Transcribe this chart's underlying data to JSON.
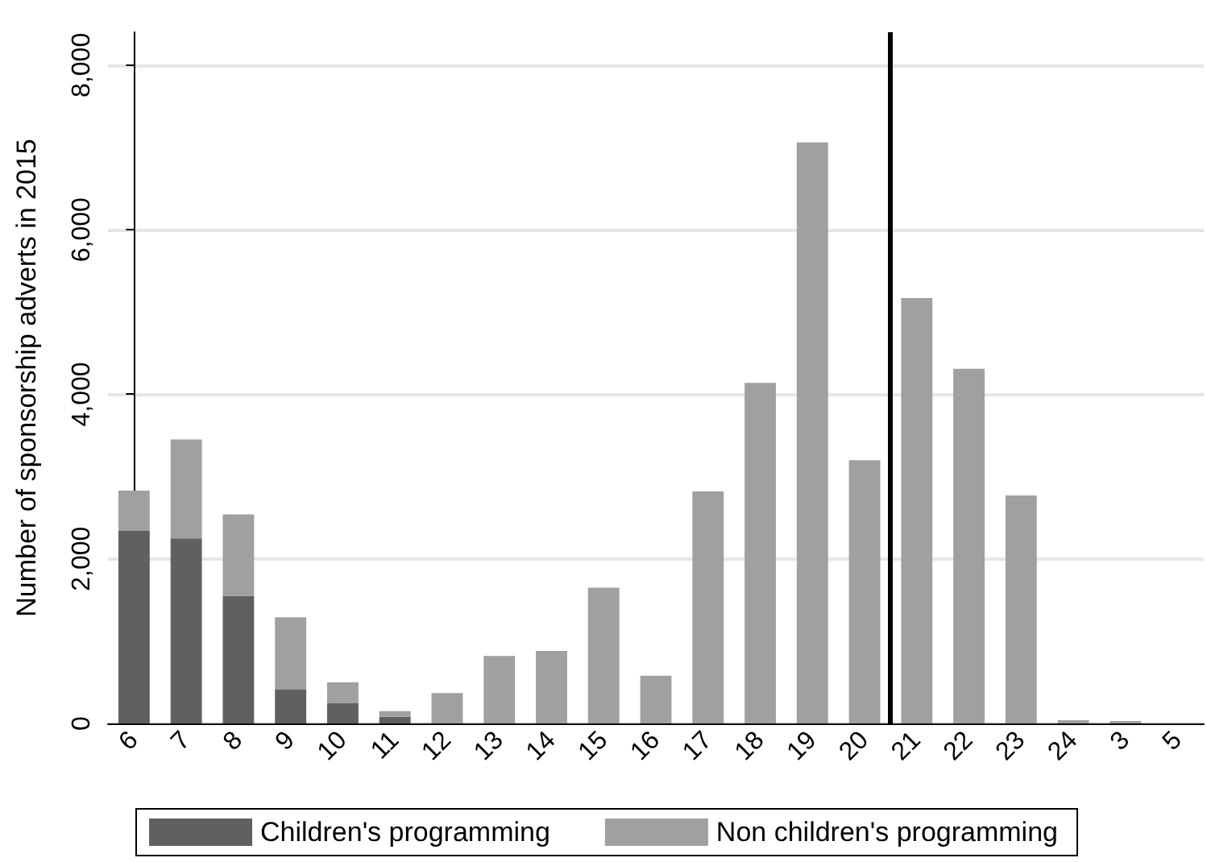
{
  "chart_data": {
    "type": "bar",
    "stacked": true,
    "ylabel": "Number of sponsorship adverts in 2015",
    "categories": [
      "6",
      "7",
      "8",
      "9",
      "10",
      "11",
      "12",
      "13",
      "14",
      "15",
      "16",
      "17",
      "18",
      "19",
      "20",
      "21",
      "22",
      "23",
      "24",
      "3",
      "5"
    ],
    "series": [
      {
        "name": "Children's programming",
        "color": "#606060",
        "values": [
          2340,
          2250,
          1550,
          410,
          250,
          80,
          0,
          0,
          0,
          0,
          0,
          0,
          0,
          0,
          0,
          0,
          0,
          0,
          0,
          0,
          0
        ]
      },
      {
        "name": "Non children's programming",
        "color": "#a0a0a0",
        "values": [
          490,
          1200,
          990,
          880,
          250,
          70,
          370,
          820,
          880,
          1650,
          580,
          2820,
          4140,
          7060,
          3200,
          5170,
          4310,
          2770,
          40,
          30,
          0
        ]
      }
    ],
    "ylim": [
      0,
      8400
    ],
    "yticks": [
      {
        "value": 0,
        "label": "0"
      },
      {
        "value": 2000,
        "label": "2,000"
      },
      {
        "value": 4000,
        "label": "4,000"
      },
      {
        "value": 6000,
        "label": "6,000"
      },
      {
        "value": 8000,
        "label": "8,000"
      }
    ],
    "grid": "y",
    "legend": "bottom",
    "ref_lines": [
      {
        "axis": "x",
        "value": "21",
        "color": "#000000"
      }
    ]
  }
}
